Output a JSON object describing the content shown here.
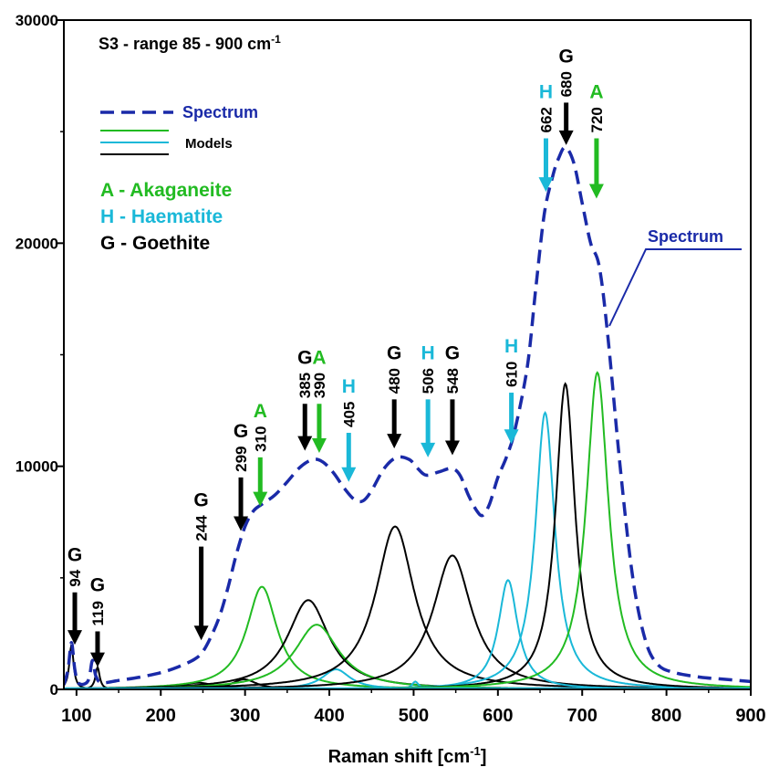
{
  "chart_data": {
    "type": "line",
    "title": "S3 - range 85 - 900 cm",
    "title_sup": "-1",
    "xlabel": "Raman shift [cm",
    "xlabel_sup": "-1",
    "xlabel_end": "]",
    "ylabel": "",
    "xlim": [
      85,
      900
    ],
    "ylim": [
      0,
      30000
    ],
    "x_ticks": [
      100,
      200,
      300,
      400,
      500,
      600,
      700,
      800,
      900
    ],
    "y_ticks": [
      0,
      10000,
      20000,
      30000
    ],
    "grid": false,
    "legend": {
      "placement": "top-left",
      "spectrum_label": "Spectrum",
      "models_label": "Models",
      "minerals": [
        {
          "text": "A - Akaganeite",
          "color": "#22bb22"
        },
        {
          "text": "H - Haematite",
          "color": "#1ab8d8"
        },
        {
          "text": "G - Goethite",
          "color": "#000000"
        }
      ]
    },
    "spectrum_callout": "Spectrum",
    "colors": {
      "spectrum": "#1a2aa8",
      "akaganeite": "#22bb22",
      "haematite": "#1ab8d8",
      "goethite": "#000000"
    },
    "spectrum": {
      "name": "Spectrum",
      "points": [
        [
          85,
          200
        ],
        [
          90,
          900
        ],
        [
          94,
          2100
        ],
        [
          98,
          900
        ],
        [
          102,
          300
        ],
        [
          110,
          250
        ],
        [
          115,
          500
        ],
        [
          119,
          1300
        ],
        [
          123,
          600
        ],
        [
          130,
          300
        ],
        [
          150,
          400
        ],
        [
          175,
          550
        ],
        [
          200,
          750
        ],
        [
          220,
          1000
        ],
        [
          240,
          1350
        ],
        [
          250,
          1700
        ],
        [
          260,
          2400
        ],
        [
          270,
          3300
        ],
        [
          280,
          4600
        ],
        [
          290,
          6100
        ],
        [
          300,
          7300
        ],
        [
          310,
          8000
        ],
        [
          320,
          8300
        ],
        [
          335,
          8700
        ],
        [
          350,
          9300
        ],
        [
          365,
          9950
        ],
        [
          380,
          10300
        ],
        [
          392,
          10200
        ],
        [
          405,
          9700
        ],
        [
          418,
          9000
        ],
        [
          430,
          8500
        ],
        [
          440,
          8450
        ],
        [
          450,
          8900
        ],
        [
          465,
          9900
        ],
        [
          480,
          10400
        ],
        [
          495,
          10300
        ],
        [
          505,
          9900
        ],
        [
          515,
          9600
        ],
        [
          530,
          9750
        ],
        [
          545,
          9900
        ],
        [
          555,
          9600
        ],
        [
          565,
          8700
        ],
        [
          575,
          8000
        ],
        [
          582,
          7800
        ],
        [
          590,
          8300
        ],
        [
          600,
          9500
        ],
        [
          610,
          10400
        ],
        [
          620,
          11600
        ],
        [
          635,
          14500
        ],
        [
          645,
          18000
        ],
        [
          655,
          21300
        ],
        [
          665,
          23000
        ],
        [
          672,
          23800
        ],
        [
          680,
          24300
        ],
        [
          690,
          23600
        ],
        [
          700,
          21800
        ],
        [
          710,
          20000
        ],
        [
          720,
          19000
        ],
        [
          730,
          16000
        ],
        [
          745,
          10000
        ],
        [
          760,
          5000
        ],
        [
          775,
          2200
        ],
        [
          790,
          1100
        ],
        [
          810,
          750
        ],
        [
          840,
          550
        ],
        [
          870,
          450
        ],
        [
          900,
          350
        ]
      ]
    },
    "models": [
      {
        "mineral": "G",
        "center": 94,
        "height": 2000,
        "width": 3
      },
      {
        "mineral": "G",
        "center": 125,
        "height": 1000,
        "width": 3
      },
      {
        "mineral": "G",
        "center": 244,
        "height": 300,
        "width": 25
      },
      {
        "mineral": "G",
        "center": 299,
        "height": 450,
        "width": 18
      },
      {
        "mineral": "A",
        "center": 320,
        "height": 4600,
        "width": 22
      },
      {
        "mineral": "G",
        "center": 375,
        "height": 4000,
        "width": 30
      },
      {
        "mineral": "A",
        "center": 385,
        "height": 2900,
        "width": 32
      },
      {
        "mineral": "H",
        "center": 408,
        "height": 900,
        "width": 20
      },
      {
        "mineral": "G",
        "center": 478,
        "height": 7300,
        "width": 28
      },
      {
        "mineral": "H",
        "center": 502,
        "height": 350,
        "width": 5
      },
      {
        "mineral": "G",
        "center": 546,
        "height": 6000,
        "width": 28
      },
      {
        "mineral": "H",
        "center": 612,
        "height": 4900,
        "width": 14
      },
      {
        "mineral": "H",
        "center": 656,
        "height": 12400,
        "width": 14
      },
      {
        "mineral": "G",
        "center": 680,
        "height": 13700,
        "width": 14
      },
      {
        "mineral": "A",
        "center": 718,
        "height": 14200,
        "width": 16
      }
    ],
    "annotations": [
      {
        "number": "94",
        "letter": "G",
        "mineral": "G",
        "x": 98,
        "arrow_top": 4350,
        "arrow_bottom": 2000
      },
      {
        "number": "119",
        "letter": "G",
        "mineral": "G",
        "x": 125,
        "arrow_top": 2600,
        "arrow_bottom": 1000
      },
      {
        "number": "244",
        "letter": "G",
        "mineral": "G",
        "x": 248,
        "arrow_top": 6400,
        "arrow_bottom": 2200
      },
      {
        "number": "299",
        "letter": "G",
        "mineral": "G",
        "x": 295,
        "arrow_top": 9500,
        "arrow_bottom": 7100
      },
      {
        "number": "310",
        "letter": "A",
        "mineral": "A",
        "x": 318,
        "arrow_top": 10400,
        "arrow_bottom": 8200
      },
      {
        "number": "385",
        "letter": "G",
        "mineral": "G",
        "x": 371,
        "arrow_top": 12800,
        "arrow_bottom": 10700
      },
      {
        "number": "390",
        "letter": "A",
        "mineral": "A",
        "x": 388,
        "arrow_top": 12800,
        "arrow_bottom": 10600
      },
      {
        "number": "405",
        "letter": "H",
        "mineral": "H",
        "x": 423,
        "arrow_top": 11500,
        "arrow_bottom": 9300
      },
      {
        "number": "480",
        "letter": "G",
        "mineral": "G",
        "x": 477,
        "arrow_top": 13000,
        "arrow_bottom": 10800
      },
      {
        "number": "506",
        "letter": "H",
        "mineral": "H",
        "x": 517,
        "arrow_top": 13000,
        "arrow_bottom": 10400
      },
      {
        "number": "548",
        "letter": "G",
        "mineral": "G",
        "x": 546,
        "arrow_top": 13000,
        "arrow_bottom": 10500
      },
      {
        "number": "610",
        "letter": "H",
        "mineral": "H",
        "x": 616,
        "arrow_top": 13300,
        "arrow_bottom": 11000
      },
      {
        "number": "662",
        "letter": "H",
        "mineral": "H",
        "x": 657,
        "arrow_top": 24700,
        "arrow_bottom": 22300
      },
      {
        "number": "680",
        "letter": "G",
        "mineral": "G",
        "x": 681,
        "arrow_top": 26300,
        "arrow_bottom": 24400
      },
      {
        "number": "720",
        "letter": "A",
        "mineral": "A",
        "x": 717,
        "arrow_top": 24700,
        "arrow_bottom": 22000
      }
    ]
  }
}
